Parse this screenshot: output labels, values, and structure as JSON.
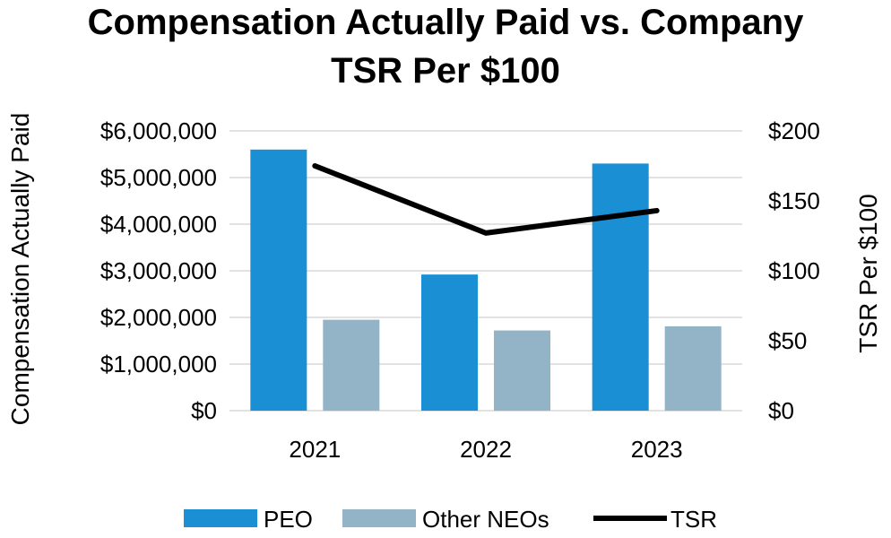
{
  "chart_data": {
    "type": "bar",
    "title_lines": [
      "Compensation Actually Paid vs. Company",
      "TSR Per $100"
    ],
    "categories": [
      "2021",
      "2022",
      "2023"
    ],
    "ylabel": "Compensation Actually Paid",
    "y2label": "TSR Per $100",
    "ylim": [
      0,
      6000000
    ],
    "y2lim": [
      0,
      200
    ],
    "yticks": [
      "$0",
      "$1,000,000",
      "$2,000,000",
      "$3,000,000",
      "$4,000,000",
      "$5,000,000",
      "$6,000,000"
    ],
    "y2ticks": [
      "$0",
      "$50",
      "$100",
      "$150",
      "$200"
    ],
    "grid": true,
    "legend_position": "bottom",
    "series": [
      {
        "name": "PEO",
        "kind": "bar",
        "axis": "left",
        "color": "#1a8fd4",
        "values": [
          5600000,
          2920000,
          5300000
        ]
      },
      {
        "name": "Other NEOs",
        "kind": "bar",
        "axis": "left",
        "color": "#93b3c6",
        "values": [
          1950000,
          1720000,
          1810000
        ]
      },
      {
        "name": "TSR",
        "kind": "line",
        "axis": "right",
        "color": "#000000",
        "values": [
          175,
          127,
          143
        ]
      }
    ]
  }
}
